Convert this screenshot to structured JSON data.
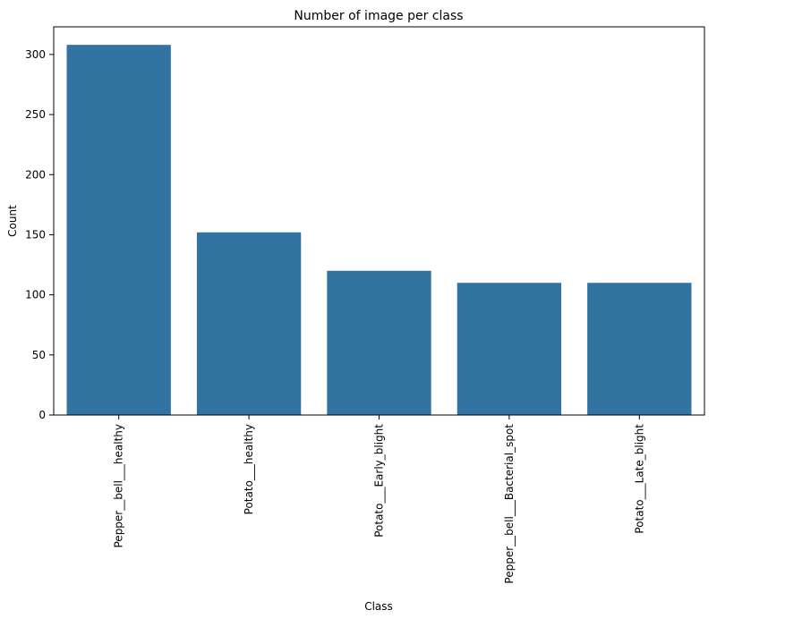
{
  "chart_data": {
    "type": "bar",
    "title": "Number of image per class",
    "xlabel": "Class",
    "ylabel": "Count",
    "categories": [
      "Pepper__bell___healthy",
      "Potato___healthy",
      "Potato___Early_blight",
      "Pepper__bell___Bacterial_spot",
      "Potato___Late_blight"
    ],
    "values": [
      308,
      152,
      120,
      110,
      110
    ],
    "ylim": [
      0,
      323
    ],
    "yticks": [
      0,
      50,
      100,
      150,
      200,
      250,
      300
    ],
    "bar_color": "#3274a1",
    "grid": false,
    "legend": false
  }
}
